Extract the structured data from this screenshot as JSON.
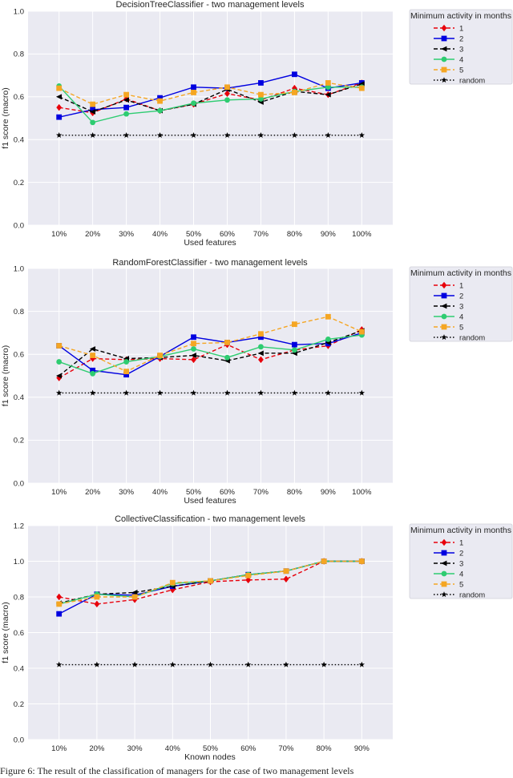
{
  "chart_data": [
    {
      "type": "line",
      "title": "DecisionTreeClassifier - two management levels",
      "xlabel": "Used features",
      "ylabel": "f1 score (macro)",
      "categories": [
        "10%",
        "20%",
        "30%",
        "40%",
        "50%",
        "60%",
        "70%",
        "80%",
        "90%",
        "100%"
      ],
      "ylim": [
        0,
        1.0
      ],
      "yticks": [
        "0.0",
        "0.2",
        "0.4",
        "0.6",
        "0.8",
        "1.0"
      ],
      "ytick_values": [
        0,
        0.2,
        0.4,
        0.6,
        0.8,
        1.0
      ],
      "grid": true,
      "legend_title": "Minimum activity in months",
      "legend_position": "outside-right",
      "series": [
        {
          "name": "1",
          "values": [
            0.55,
            0.525,
            0.59,
            0.535,
            0.565,
            0.615,
            0.585,
            0.64,
            0.61,
            0.665
          ]
        },
        {
          "name": "2",
          "values": [
            0.505,
            0.54,
            0.55,
            0.595,
            0.645,
            0.64,
            0.665,
            0.705,
            0.64,
            0.665
          ]
        },
        {
          "name": "3",
          "values": [
            0.6,
            0.53,
            0.585,
            0.535,
            0.565,
            0.635,
            0.575,
            0.625,
            0.61,
            0.66
          ]
        },
        {
          "name": "4",
          "values": [
            0.65,
            0.48,
            0.52,
            0.535,
            0.57,
            0.585,
            0.59,
            0.625,
            0.645,
            0.645
          ]
        },
        {
          "name": "5",
          "values": [
            0.64,
            0.565,
            0.61,
            0.58,
            0.62,
            0.645,
            0.61,
            0.62,
            0.665,
            0.64
          ]
        },
        {
          "name": "random",
          "values": [
            0.42,
            0.42,
            0.42,
            0.42,
            0.42,
            0.42,
            0.42,
            0.42,
            0.42,
            0.42
          ]
        }
      ]
    },
    {
      "type": "line",
      "title": "RandomForestClassifier - two management levels",
      "xlabel": "Used features",
      "ylabel": "f1 score (macro)",
      "categories": [
        "10%",
        "20%",
        "30%",
        "40%",
        "50%",
        "60%",
        "70%",
        "80%",
        "90%",
        "100%"
      ],
      "ylim": [
        0,
        1.0
      ],
      "yticks": [
        "0.0",
        "0.2",
        "0.4",
        "0.6",
        "0.8",
        "1.0"
      ],
      "ytick_values": [
        0,
        0.2,
        0.4,
        0.6,
        0.8,
        1.0
      ],
      "grid": true,
      "legend_title": "Minimum activity in months",
      "legend_position": "outside-right",
      "series": [
        {
          "name": "1",
          "values": [
            0.49,
            0.58,
            0.575,
            0.58,
            0.575,
            0.645,
            0.575,
            0.62,
            0.64,
            0.715
          ]
        },
        {
          "name": "2",
          "values": [
            0.64,
            0.525,
            0.505,
            0.59,
            0.68,
            0.655,
            0.68,
            0.645,
            0.65,
            0.7
          ]
        },
        {
          "name": "3",
          "values": [
            0.5,
            0.625,
            0.58,
            0.585,
            0.595,
            0.57,
            0.605,
            0.605,
            0.655,
            0.71
          ]
        },
        {
          "name": "4",
          "values": [
            0.565,
            0.51,
            0.565,
            0.59,
            0.625,
            0.585,
            0.635,
            0.62,
            0.67,
            0.69
          ]
        },
        {
          "name": "5",
          "values": [
            0.64,
            0.595,
            0.52,
            0.595,
            0.65,
            0.655,
            0.695,
            0.74,
            0.775,
            0.705
          ]
        },
        {
          "name": "random",
          "values": [
            0.42,
            0.42,
            0.42,
            0.42,
            0.42,
            0.42,
            0.42,
            0.42,
            0.42,
            0.42
          ]
        }
      ]
    },
    {
      "type": "line",
      "title": "CollectiveClassification - two management levels",
      "xlabel": "Known nodes",
      "ylabel": "f1 score (macro)",
      "categories": [
        "10%",
        "20%",
        "30%",
        "40%",
        "50%",
        "60%",
        "70%",
        "80%",
        "90%"
      ],
      "ylim": [
        0,
        1.2
      ],
      "yticks": [
        "0.0",
        "0.2",
        "0.4",
        "0.6",
        "0.8",
        "1.0",
        "1.2"
      ],
      "ytick_values": [
        0,
        0.2,
        0.4,
        0.6,
        0.8,
        1.0,
        1.2
      ],
      "grid": true,
      "legend_title": "Minimum activity in months",
      "legend_position": "outside-right",
      "series": [
        {
          "name": "1",
          "values": [
            0.8,
            0.76,
            0.785,
            0.84,
            0.885,
            0.895,
            0.9,
            1.0,
            1.0
          ]
        },
        {
          "name": "2",
          "values": [
            0.705,
            0.815,
            0.81,
            0.86,
            0.89,
            0.925,
            0.945,
            1.0,
            1.0
          ]
        },
        {
          "name": "3",
          "values": [
            0.765,
            0.815,
            0.825,
            0.86,
            0.89,
            0.925,
            0.945,
            1.0,
            1.0
          ]
        },
        {
          "name": "4",
          "values": [
            0.76,
            0.815,
            0.8,
            0.875,
            0.89,
            0.925,
            0.945,
            1.0,
            1.0
          ]
        },
        {
          "name": "5",
          "values": [
            0.76,
            0.8,
            0.8,
            0.88,
            0.89,
            0.92,
            0.945,
            1.0,
            1.0
          ]
        },
        {
          "name": "random",
          "values": [
            0.42,
            0.42,
            0.42,
            0.42,
            0.42,
            0.42,
            0.42,
            0.42,
            0.42
          ]
        }
      ]
    }
  ],
  "style": {
    "plot_bg": "#eaeaf2",
    "grid": "#ffffff",
    "series": [
      {
        "color": "#e8000b",
        "marker": "diamond",
        "dash": "dashed"
      },
      {
        "color": "#0000e0",
        "marker": "square",
        "dash": "solid"
      },
      {
        "color": "#000000",
        "marker": "left-triangle",
        "dash": "dashed"
      },
      {
        "color": "#2ecc71",
        "marker": "circle",
        "dash": "solid"
      },
      {
        "color": "#f5a623",
        "marker": "square",
        "dash": "dashed"
      },
      {
        "color": "#000000",
        "marker": "star",
        "dash": "dotted"
      }
    ]
  },
  "caption": "Figure 6: The result of the classification of managers for the case of two management levels"
}
